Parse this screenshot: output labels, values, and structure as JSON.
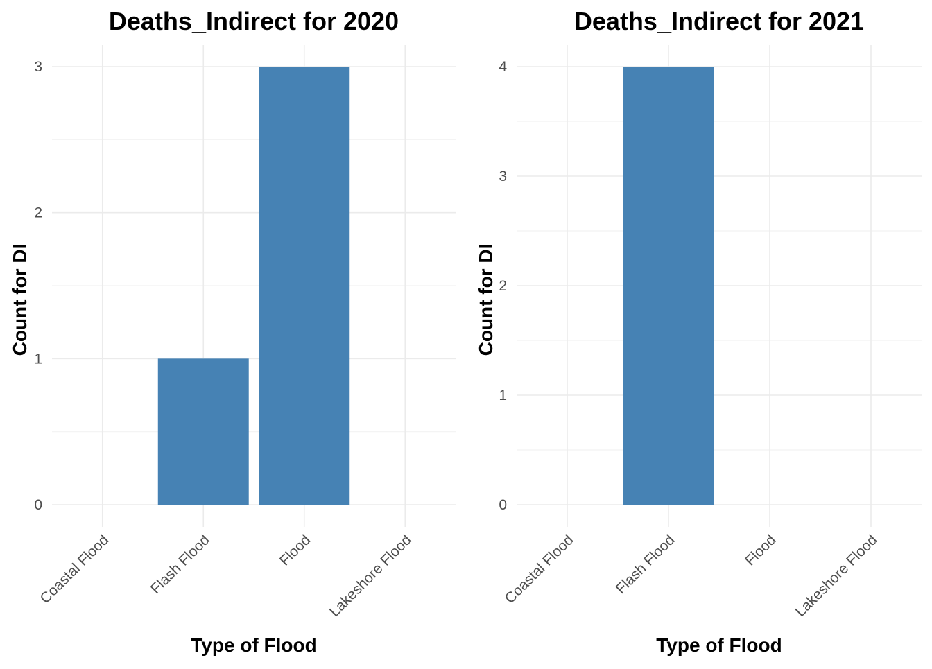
{
  "chart_data": [
    {
      "type": "bar",
      "title": "Deaths_Indirect for 2020",
      "xlabel": "Type of Flood",
      "ylabel": "Count for DI",
      "categories": [
        "Coastal Flood",
        "Flash Flood",
        "Flood",
        "Lakeshore Flood"
      ],
      "values": [
        0,
        1,
        3,
        0
      ],
      "ylim": [
        0,
        3
      ],
      "yticks": [
        0,
        1,
        2,
        3
      ],
      "bar_color": "#4682b4",
      "grid": true,
      "legend": "none"
    },
    {
      "type": "bar",
      "title": "Deaths_Indirect for 2021",
      "xlabel": "Type of Flood",
      "ylabel": "Count for DI",
      "categories": [
        "Coastal Flood",
        "Flash Flood",
        "Flood",
        "Lakeshore Flood"
      ],
      "values": [
        0,
        4,
        0,
        0
      ],
      "ylim": [
        0,
        4
      ],
      "yticks": [
        0,
        1,
        2,
        3,
        4
      ],
      "bar_color": "#4682b4",
      "grid": true,
      "legend": "none"
    }
  ]
}
